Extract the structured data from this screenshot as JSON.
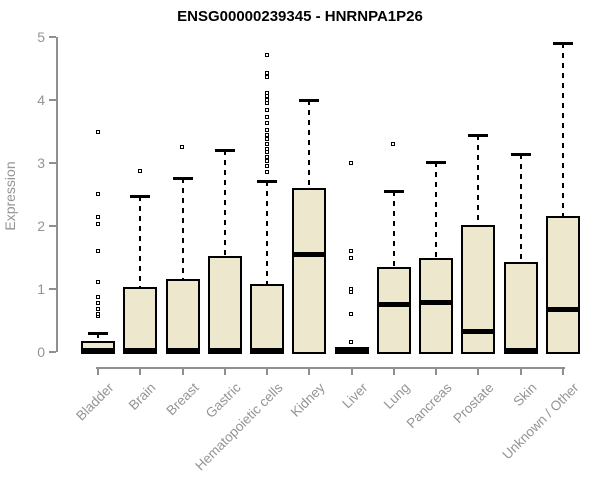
{
  "colors": {
    "background": "#ffffff",
    "box_fill": "#ECE7CD",
    "box_border": "#000000",
    "median": "#000000",
    "whisker": "#000000",
    "axis": "#8f8f8f",
    "tick_label": "#949494",
    "title": "#000000"
  },
  "chart_data": {
    "type": "boxplot",
    "title": "ENSG00000239345 - HNRNPA1P26",
    "ylabel": "Expression",
    "xlabel": "",
    "ylim": [
      0,
      5
    ],
    "yticks": [
      0,
      1,
      2,
      3,
      4,
      5
    ],
    "grid": false,
    "legend": false,
    "categories": [
      "Bladder",
      "Brain",
      "Breast",
      "Gastric",
      "Hematopoietic cells",
      "Kidney",
      "Liver",
      "Lung",
      "Pancreas",
      "Prostate",
      "Skin",
      "Unknown / Other"
    ],
    "series": [
      {
        "name": "Bladder",
        "whisker_low": 0,
        "q1": 0,
        "median": 0.02,
        "q3": 0.14,
        "whisker_high": 0.3,
        "outliers": [
          0.56,
          0.6,
          0.68,
          0.77,
          0.86,
          1.1,
          1.6,
          2.03,
          2.14,
          2.5,
          3.48
        ]
      },
      {
        "name": "Brain",
        "whisker_low": 0,
        "q1": 0,
        "median": 0.02,
        "q3": 1.0,
        "whisker_high": 2.48,
        "outliers": [
          2.87
        ]
      },
      {
        "name": "Breast",
        "whisker_low": 0,
        "q1": 0,
        "median": 0.02,
        "q3": 1.13,
        "whisker_high": 2.76,
        "outliers": [
          3.25
        ]
      },
      {
        "name": "Gastric",
        "whisker_low": 0,
        "q1": 0,
        "median": 0.02,
        "q3": 1.5,
        "whisker_high": 3.21,
        "outliers": []
      },
      {
        "name": "Hematopoietic cells",
        "whisker_low": 0,
        "q1": 0,
        "median": 0.02,
        "q3": 1.05,
        "whisker_high": 2.72,
        "outliers": [
          2.85,
          2.94,
          3.02,
          3.08,
          3.16,
          3.21,
          3.29,
          3.37,
          3.44,
          3.52,
          3.63,
          3.73,
          3.84,
          3.95,
          4.0,
          4.06,
          4.11,
          4.35,
          4.42,
          4.7
        ]
      },
      {
        "name": "Kidney",
        "whisker_low": 0,
        "q1": 0,
        "median": 1.55,
        "q3": 2.57,
        "whisker_high": 4.0,
        "outliers": []
      },
      {
        "name": "Liver",
        "whisker_low": 0,
        "q1": 0,
        "median": 0.02,
        "q3": 0.04,
        "whisker_high": 0.04,
        "outliers": [
          0.15,
          0.6,
          0.95,
          1.0,
          1.48,
          1.6,
          3.0
        ]
      },
      {
        "name": "Lung",
        "whisker_low": 0,
        "q1": 0,
        "median": 0.76,
        "q3": 1.32,
        "whisker_high": 2.56,
        "outliers": [
          3.3
        ]
      },
      {
        "name": "Pancreas",
        "whisker_low": 0,
        "q1": 0,
        "median": 0.79,
        "q3": 1.46,
        "whisker_high": 3.02,
        "outliers": []
      },
      {
        "name": "Prostate",
        "whisker_low": 0,
        "q1": 0,
        "median": 0.32,
        "q3": 1.99,
        "whisker_high": 3.45,
        "outliers": []
      },
      {
        "name": "Skin",
        "whisker_low": 0,
        "q1": 0,
        "median": 0.02,
        "q3": 1.4,
        "whisker_high": 3.15,
        "outliers": []
      },
      {
        "name": "Unknown / Other",
        "whisker_low": 0,
        "q1": 0,
        "median": 0.68,
        "q3": 2.12,
        "whisker_high": 4.9,
        "outliers": []
      }
    ]
  }
}
